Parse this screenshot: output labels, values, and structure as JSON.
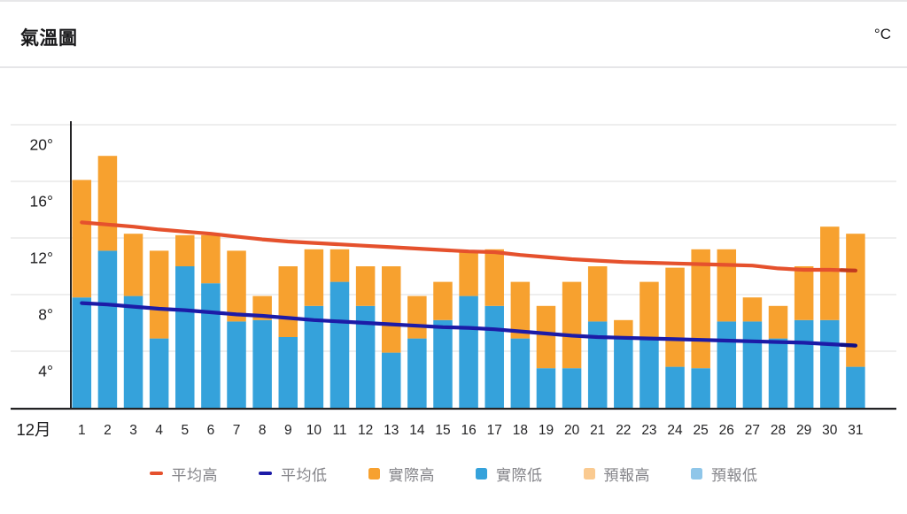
{
  "header": {
    "title": "氣溫圖",
    "unit_label": "°C"
  },
  "chart_data": {
    "type": "bar",
    "title": "氣溫圖",
    "unit": "°C",
    "month_label": "12月",
    "days": [
      1,
      2,
      3,
      4,
      5,
      6,
      7,
      8,
      9,
      10,
      11,
      12,
      13,
      14,
      15,
      16,
      17,
      18,
      19,
      20,
      21,
      22,
      23,
      24,
      25,
      26,
      27,
      28,
      29,
      30,
      31
    ],
    "y_axis": {
      "tick_values": [
        20,
        16,
        12,
        8,
        4
      ],
      "tick_labels": [
        "20°",
        "16°",
        "12°",
        "8°",
        "4°"
      ],
      "min": 0,
      "max": 20,
      "grid": true
    },
    "legend_position": "bottom",
    "series": [
      {
        "name": "平均高",
        "key": "avg-high",
        "type": "line",
        "color": "#e5512d",
        "end_color": "#c23a1e",
        "values": [
          13.1,
          12.95,
          12.8,
          12.6,
          12.45,
          12.3,
          12.1,
          11.9,
          11.75,
          11.65,
          11.55,
          11.45,
          11.35,
          11.25,
          11.15,
          11.05,
          11.0,
          10.8,
          10.65,
          10.5,
          10.4,
          10.3,
          10.25,
          10.2,
          10.15,
          10.1,
          10.05,
          9.85,
          9.75,
          9.75,
          9.7
        ]
      },
      {
        "name": "平均低",
        "key": "avg-low",
        "type": "line",
        "color": "#1c1ba7",
        "end_color": "#100f85",
        "values": [
          7.4,
          7.3,
          7.15,
          7.0,
          6.9,
          6.75,
          6.6,
          6.5,
          6.35,
          6.2,
          6.1,
          6.0,
          5.9,
          5.8,
          5.7,
          5.65,
          5.55,
          5.4,
          5.25,
          5.1,
          5.0,
          4.95,
          4.9,
          4.85,
          4.8,
          4.75,
          4.7,
          4.65,
          4.6,
          4.5,
          4.4
        ]
      },
      {
        "name": "實際高",
        "key": "actual-high",
        "type": "bar",
        "color": "#f7a12f",
        "values": [
          16.1,
          17.8,
          12.3,
          11.1,
          12.2,
          12.2,
          11.1,
          7.9,
          10.0,
          11.2,
          11.2,
          10.0,
          10.0,
          7.9,
          8.9,
          11.1,
          11.2,
          8.9,
          7.2,
          8.9,
          10.0,
          6.2,
          8.9,
          9.9,
          11.2,
          11.2,
          7.8,
          7.2,
          10.0,
          12.8,
          12.3
        ]
      },
      {
        "name": "實際低",
        "key": "actual-low",
        "type": "bar",
        "color": "#35a2db",
        "values": [
          7.8,
          11.1,
          7.9,
          4.9,
          10.0,
          8.8,
          6.1,
          6.2,
          5.0,
          7.2,
          8.9,
          7.2,
          3.9,
          4.9,
          6.2,
          7.9,
          7.2,
          4.9,
          2.8,
          2.8,
          6.1,
          5.0,
          4.9,
          2.9,
          2.8,
          6.1,
          6.1,
          4.9,
          6.2,
          6.2,
          2.9
        ]
      },
      {
        "name": "預報高",
        "key": "forecast-high",
        "type": "bar",
        "color": "#faca90",
        "values": []
      },
      {
        "name": "預報低",
        "key": "forecast-low",
        "type": "bar",
        "color": "#8fc6e9",
        "values": []
      }
    ]
  },
  "legend": {
    "items": [
      {
        "key": "avg-high",
        "label": "平均高",
        "swatch": "dash",
        "color": "#e5512d"
      },
      {
        "key": "avg-low",
        "label": "平均低",
        "swatch": "dash",
        "color": "#1c1ba7"
      },
      {
        "key": "actual-high",
        "label": "實際高",
        "swatch": "square",
        "color": "#f7a12f"
      },
      {
        "key": "actual-low",
        "label": "實際低",
        "swatch": "square",
        "color": "#35a2db"
      },
      {
        "key": "forecast-high",
        "label": "預報高",
        "swatch": "square",
        "color": "#faca90"
      },
      {
        "key": "forecast-low",
        "label": "預報低",
        "swatch": "square",
        "color": "#8fc6e9"
      }
    ]
  }
}
